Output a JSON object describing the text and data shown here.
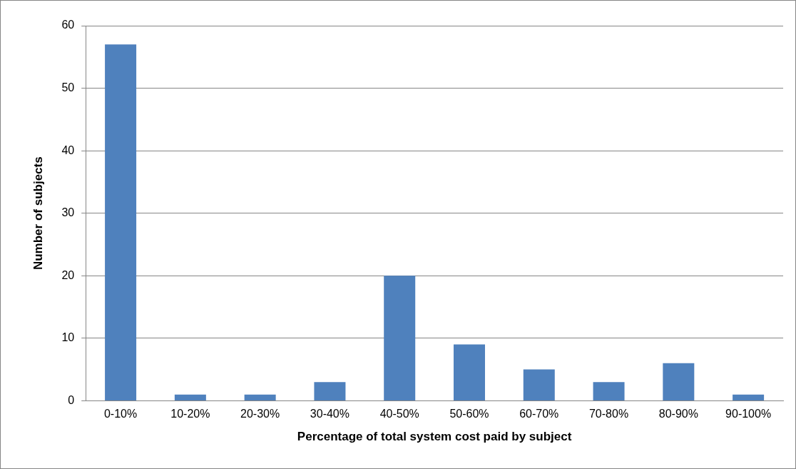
{
  "chart_data": {
    "type": "bar",
    "xlabel": "Percentage of total system cost paid by subject",
    "ylabel": "Number of subjects",
    "categories": [
      "0-10%",
      "10-20%",
      "20-30%",
      "30-40%",
      "40-50%",
      "50-60%",
      "60-70%",
      "70-80%",
      "80-90%",
      "90-100%"
    ],
    "values": [
      57,
      1,
      1,
      3,
      20,
      9,
      5,
      3,
      6,
      1
    ],
    "color": "#4f81bd",
    "ylim": [
      0,
      60
    ],
    "yticks": [
      0,
      10,
      20,
      30,
      40,
      50,
      60
    ],
    "grid": "y",
    "legend": false
  }
}
